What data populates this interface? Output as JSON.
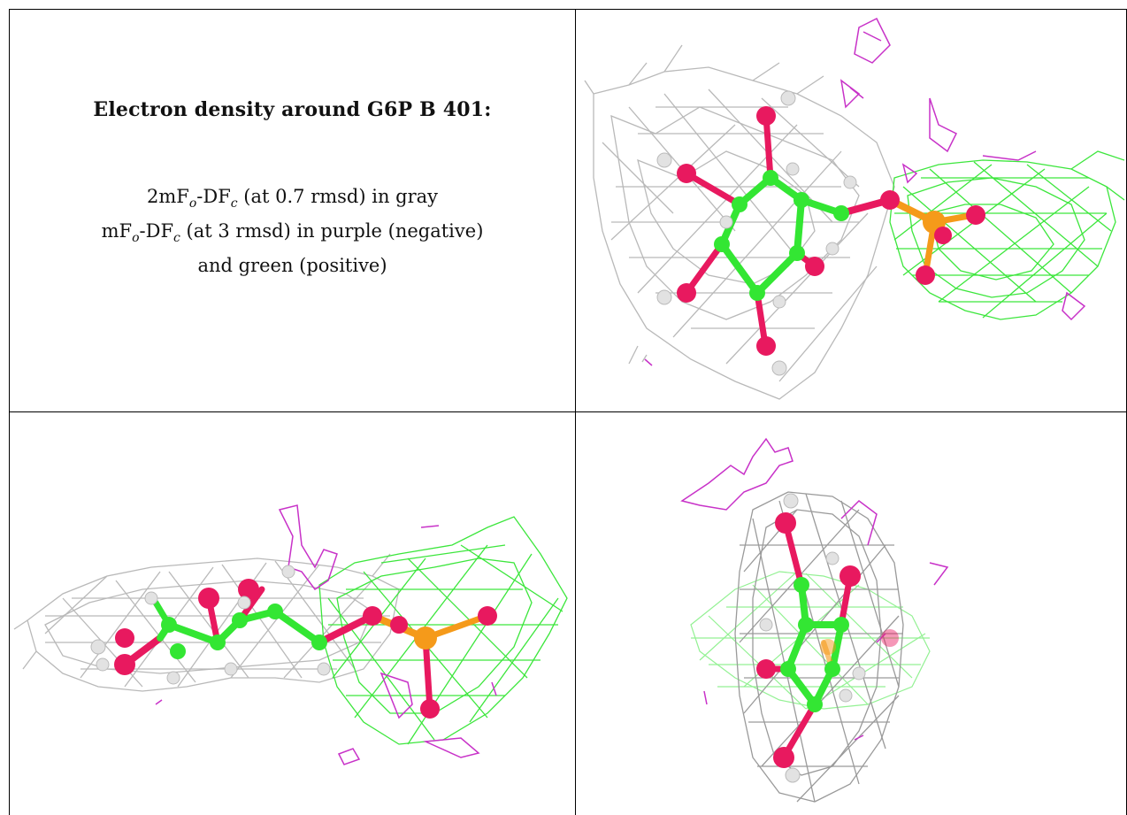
{
  "caption": {
    "title": "Electron density around G6P B 401:",
    "line1_prefix": "2mF",
    "line1_sub1": "o",
    "line1_mid": "-DF",
    "line1_sub2": "c",
    "line1_suffix": " (at 0.7 rmsd) in gray",
    "line2_prefix": "mF",
    "line2_sub1": "o",
    "line2_mid": "-DF",
    "line2_sub2": "c",
    "line2_suffix": " (at 3 rmsd) in purple (negative)",
    "line3": "and green (positive)"
  },
  "panels": [
    {
      "id": "top-right",
      "view": "face-on view of ligand with mesh"
    },
    {
      "id": "bottom-left",
      "view": "side view of ligand with mesh"
    },
    {
      "id": "bottom-right",
      "view": "end-on view of ligand with mesh"
    }
  ],
  "colors": {
    "mesh_2fofc": "#b9b9b9",
    "mesh_negative": "#c832c8",
    "mesh_positive": "#3ce63c",
    "carbon": "#33e633",
    "oxygen": "#e8195f",
    "phosphorus": "#f59a1a",
    "hydrogen": "#e2e2e2",
    "border": "#000000"
  }
}
